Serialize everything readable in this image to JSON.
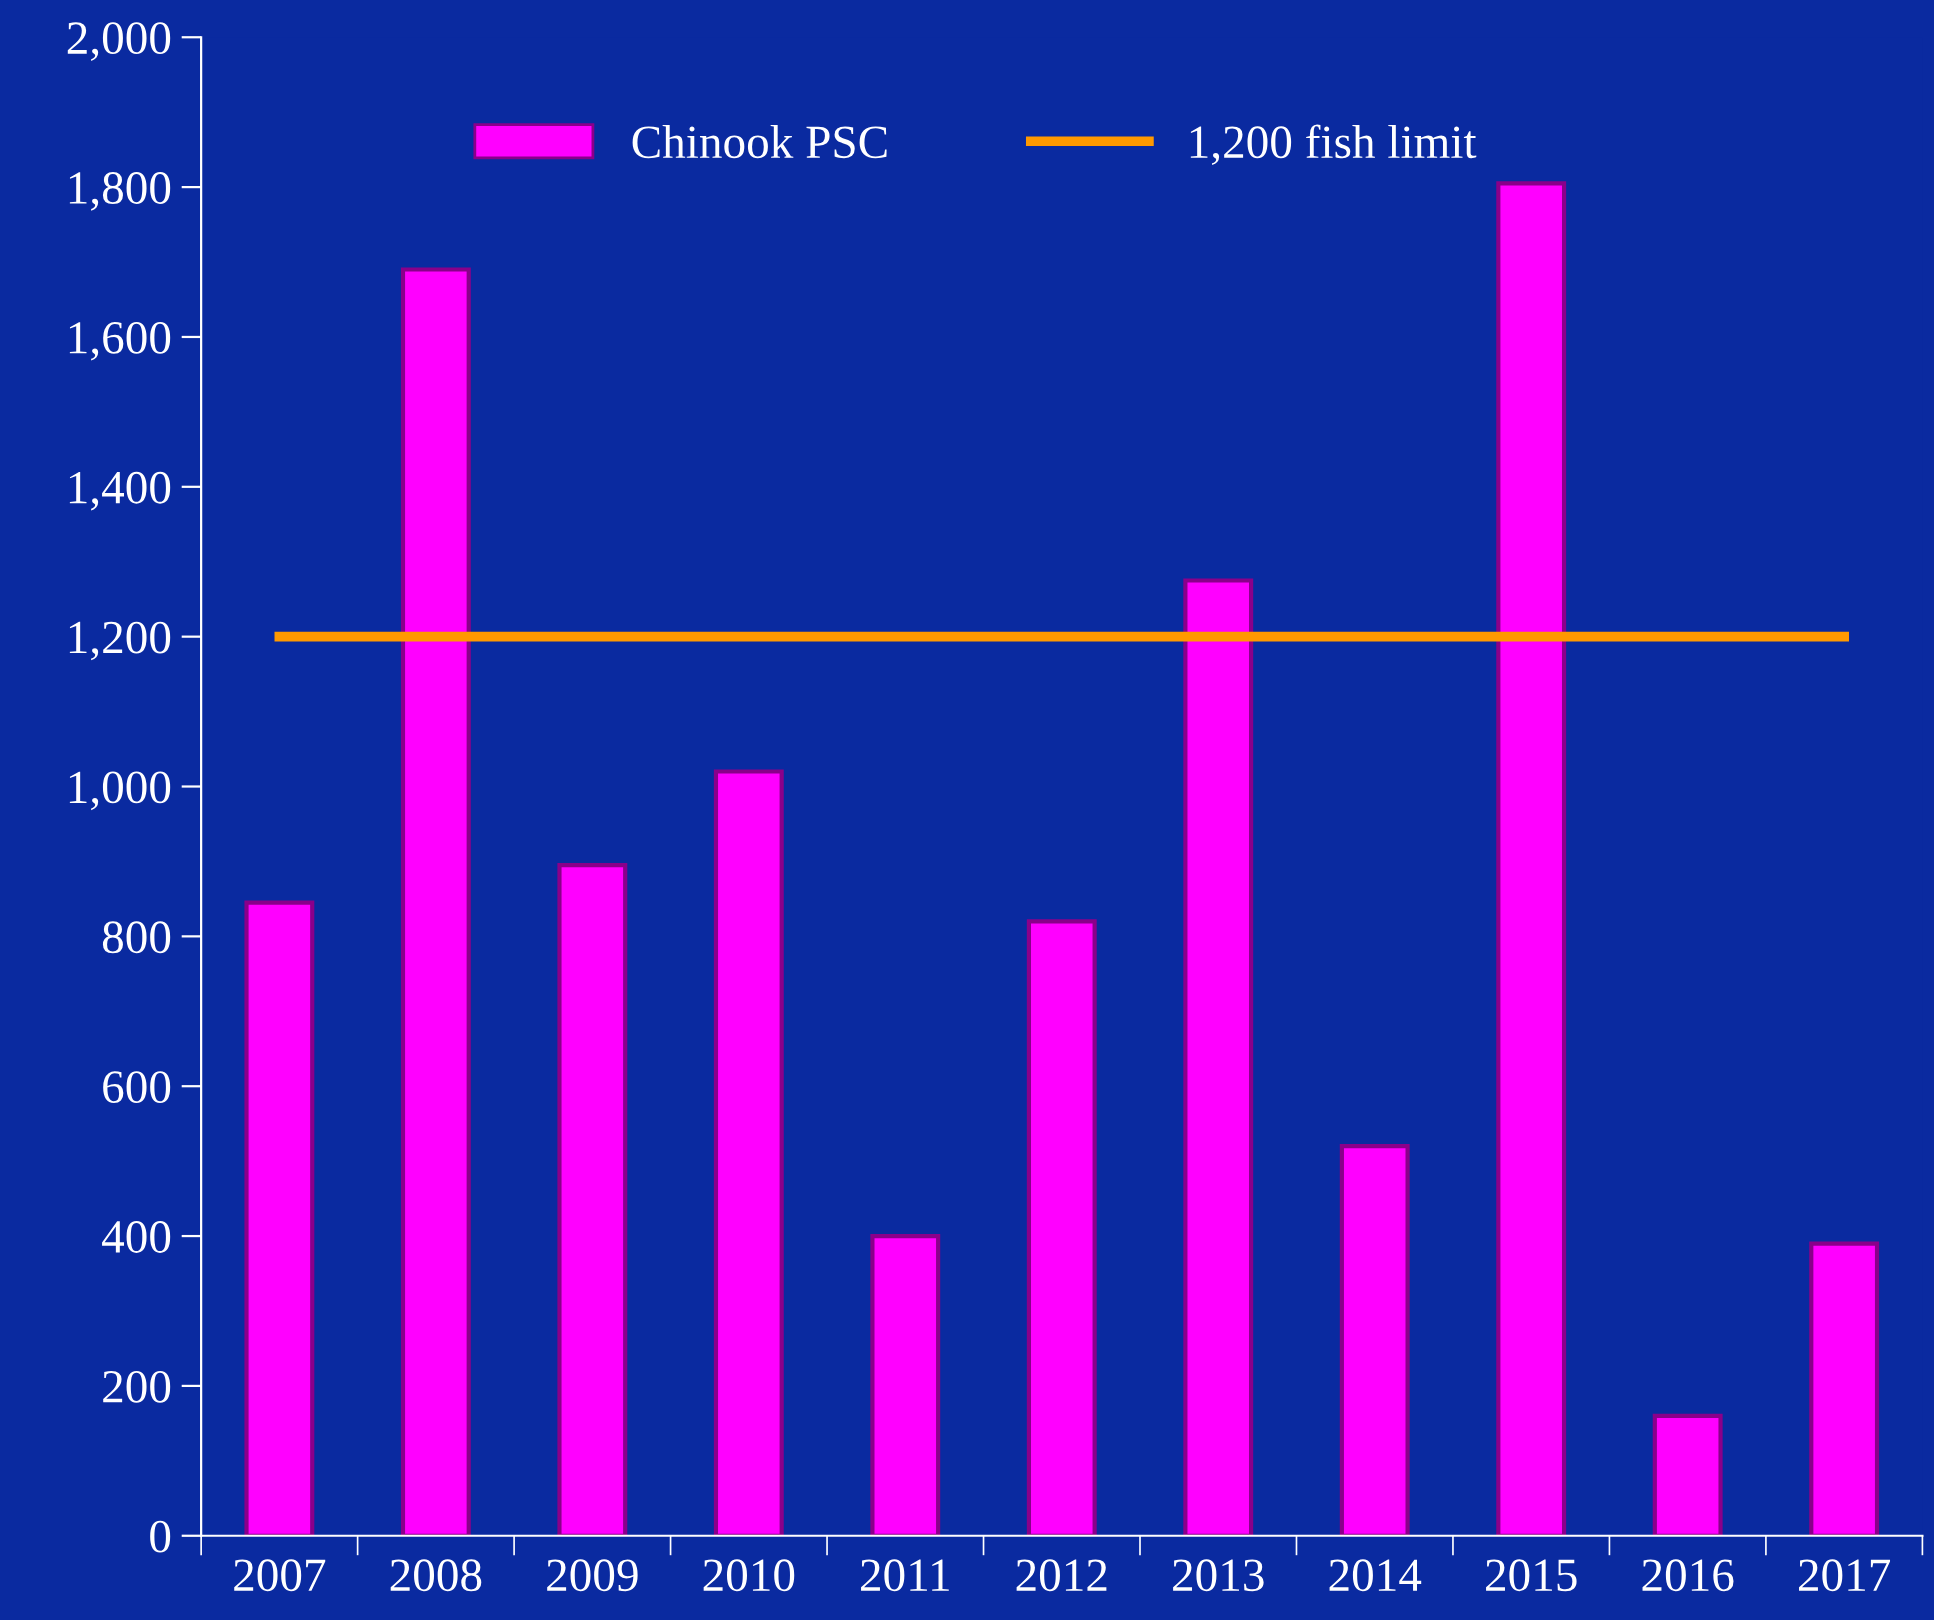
{
  "chart_data": {
    "type": "bar",
    "categories": [
      "2007",
      "2008",
      "2009",
      "2010",
      "2011",
      "2012",
      "2013",
      "2014",
      "2015",
      "2016",
      "2017"
    ],
    "series": [
      {
        "name": "Chinook PSC",
        "color": "#ff00ff",
        "values": [
          845,
          1690,
          895,
          1020,
          400,
          820,
          1275,
          520,
          1805,
          160,
          390
        ]
      },
      {
        "name": "1,200 fish limit",
        "type": "line",
        "color": "#ff9900",
        "values": [
          1200,
          1200,
          1200,
          1200,
          1200,
          1200,
          1200,
          1200,
          1200,
          1200,
          1200
        ]
      }
    ],
    "ylim": [
      0,
      2000
    ],
    "yticks": [
      0,
      200,
      400,
      600,
      800,
      {
        "value": 1000,
        "label": "1,000"
      },
      {
        "value": 1200,
        "label": "1,200"
      },
      {
        "value": 1400,
        "label": "1,400"
      },
      {
        "value": 1600,
        "label": "1,600"
      },
      {
        "value": 1800,
        "label": "1,800"
      },
      {
        "value": 2000,
        "label": "2,000"
      }
    ],
    "grid": false,
    "legend": "top",
    "marker": "none",
    "line_style": "solid"
  }
}
